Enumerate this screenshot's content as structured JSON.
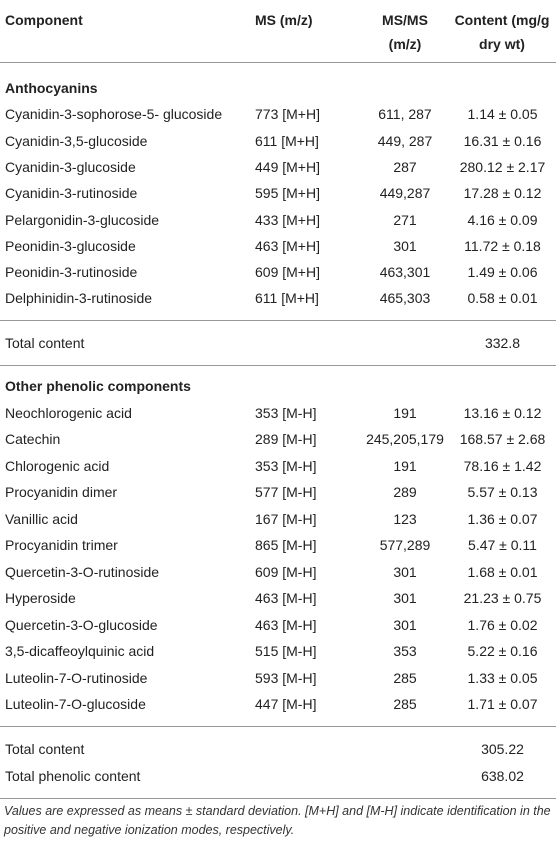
{
  "table": {
    "header": [
      "Component",
      "MS (m/z)",
      "MS/MS (m/z)",
      "Content (mg/g dry wt)"
    ],
    "sections": [
      {
        "title": "Anthocyanins",
        "rows": [
          [
            "Cyanidin-3-sophorose-5- glucoside",
            "773 [M+H]",
            "611, 287",
            "1.14 ± 0.05"
          ],
          [
            "Cyanidin-3,5-glucoside",
            "611 [M+H]",
            "449, 287",
            "16.31 ± 0.16"
          ],
          [
            "Cyanidin-3-glucoside",
            "449 [M+H]",
            "287",
            "280.12 ± 2.17"
          ],
          [
            "Cyanidin-3-rutinoside",
            "595 [M+H]",
            "449,287",
            "17.28 ± 0.12"
          ],
          [
            "Pelargonidin-3-glucoside",
            "433 [M+H]",
            "271",
            "4.16 ± 0.09"
          ],
          [
            "Peonidin-3-glucoside",
            "463 [M+H]",
            "301",
            "11.72 ± 0.18"
          ],
          [
            "Peonidin-3-rutinoside",
            "609 [M+H]",
            "463,301",
            "1.49 ± 0.06"
          ],
          [
            "Delphinidin-3-rutinoside",
            "611 [M+H]",
            "465,303",
            "0.58 ± 0.01"
          ]
        ],
        "totals": [
          [
            "Total content",
            "332.8"
          ]
        ]
      },
      {
        "title": "Other phenolic components",
        "rows": [
          [
            "Neochlorogenic acid",
            "353 [M-H]",
            "191",
            "13.16 ± 0.12"
          ],
          [
            "Catechin",
            "289 [M-H]",
            "245,205,179",
            "168.57 ± 2.68"
          ],
          [
            "Chlorogenic acid",
            "353 [M-H]",
            "191",
            "78.16 ± 1.42"
          ],
          [
            "Procyanidin dimer",
            "577 [M-H]",
            "289",
            "5.57 ± 0.13"
          ],
          [
            "Vanillic acid",
            "167 [M-H]",
            "123",
            "1.36 ± 0.07"
          ],
          [
            "Procyanidin trimer",
            "865 [M-H]",
            "577,289",
            "5.47 ± 0.11"
          ],
          [
            "Quercetin-3-O-rutinoside",
            "609 [M-H]",
            "301",
            "1.68 ± 0.01"
          ],
          [
            "Hyperoside",
            "463 [M-H]",
            "301",
            "21.23 ± 0.75"
          ],
          [
            "Quercetin-3-O-glucoside",
            "463 [M-H]",
            "301",
            "1.76 ± 0.02"
          ],
          [
            "3,5-dicaffeoylquinic acid",
            "515 [M-H]",
            "353",
            "5.22 ± 0.16"
          ],
          [
            "Luteolin-7-O-rutinoside",
            "593 [M-H]",
            "285",
            "1.33 ± 0.05"
          ],
          [
            "Luteolin-7-O-glucoside",
            "447 [M-H]",
            "285",
            "1.71 ± 0.07"
          ]
        ],
        "totals": [
          [
            "Total content",
            "305.22"
          ],
          [
            "Total phenolic content",
            "638.02"
          ]
        ]
      }
    ],
    "footnote": "Values are expressed as means ± standard deviation. [M+H] and [M-H] indicate identification in the positive and negative ionization modes, respectively."
  }
}
